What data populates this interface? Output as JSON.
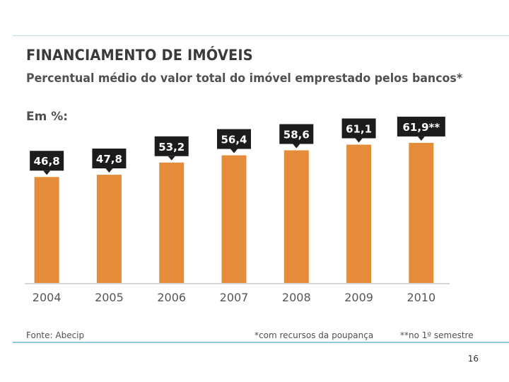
{
  "title": "FINANCIAMENTO DE IMÓVEIS",
  "subtitle": "Percentual médio do valor total do imóvel emprestado pelos bancos*",
  "unit_label": "Em %:",
  "source": "Fonte: Abecip",
  "note_1": "*com recursos da poupança",
  "note_2": "**no 1º semestre",
  "page_number": "16",
  "colors": {
    "bar": "#e58c3a",
    "label_box": "#1c1c1c",
    "label_text": "#ffffff",
    "axis": "#d4d4d4"
  },
  "chart_data": {
    "type": "bar",
    "title": "FINANCIAMENTO DE IMÓVEIS",
    "subtitle": "Percentual médio do valor total do imóvel emprestado pelos bancos*",
    "ylabel": "Em %:",
    "xlabel": "",
    "categories": [
      "2004",
      "2005",
      "2006",
      "2007",
      "2008",
      "2009",
      "2010"
    ],
    "values": [
      46.8,
      47.8,
      53.2,
      56.4,
      58.6,
      61.1,
      61.9
    ],
    "data_labels": [
      "46,8",
      "47,8",
      "53,2",
      "56,4",
      "58,6",
      "61,1",
      "61,9**"
    ],
    "ylim": [
      0,
      100
    ],
    "grid": false,
    "legend": "none"
  }
}
